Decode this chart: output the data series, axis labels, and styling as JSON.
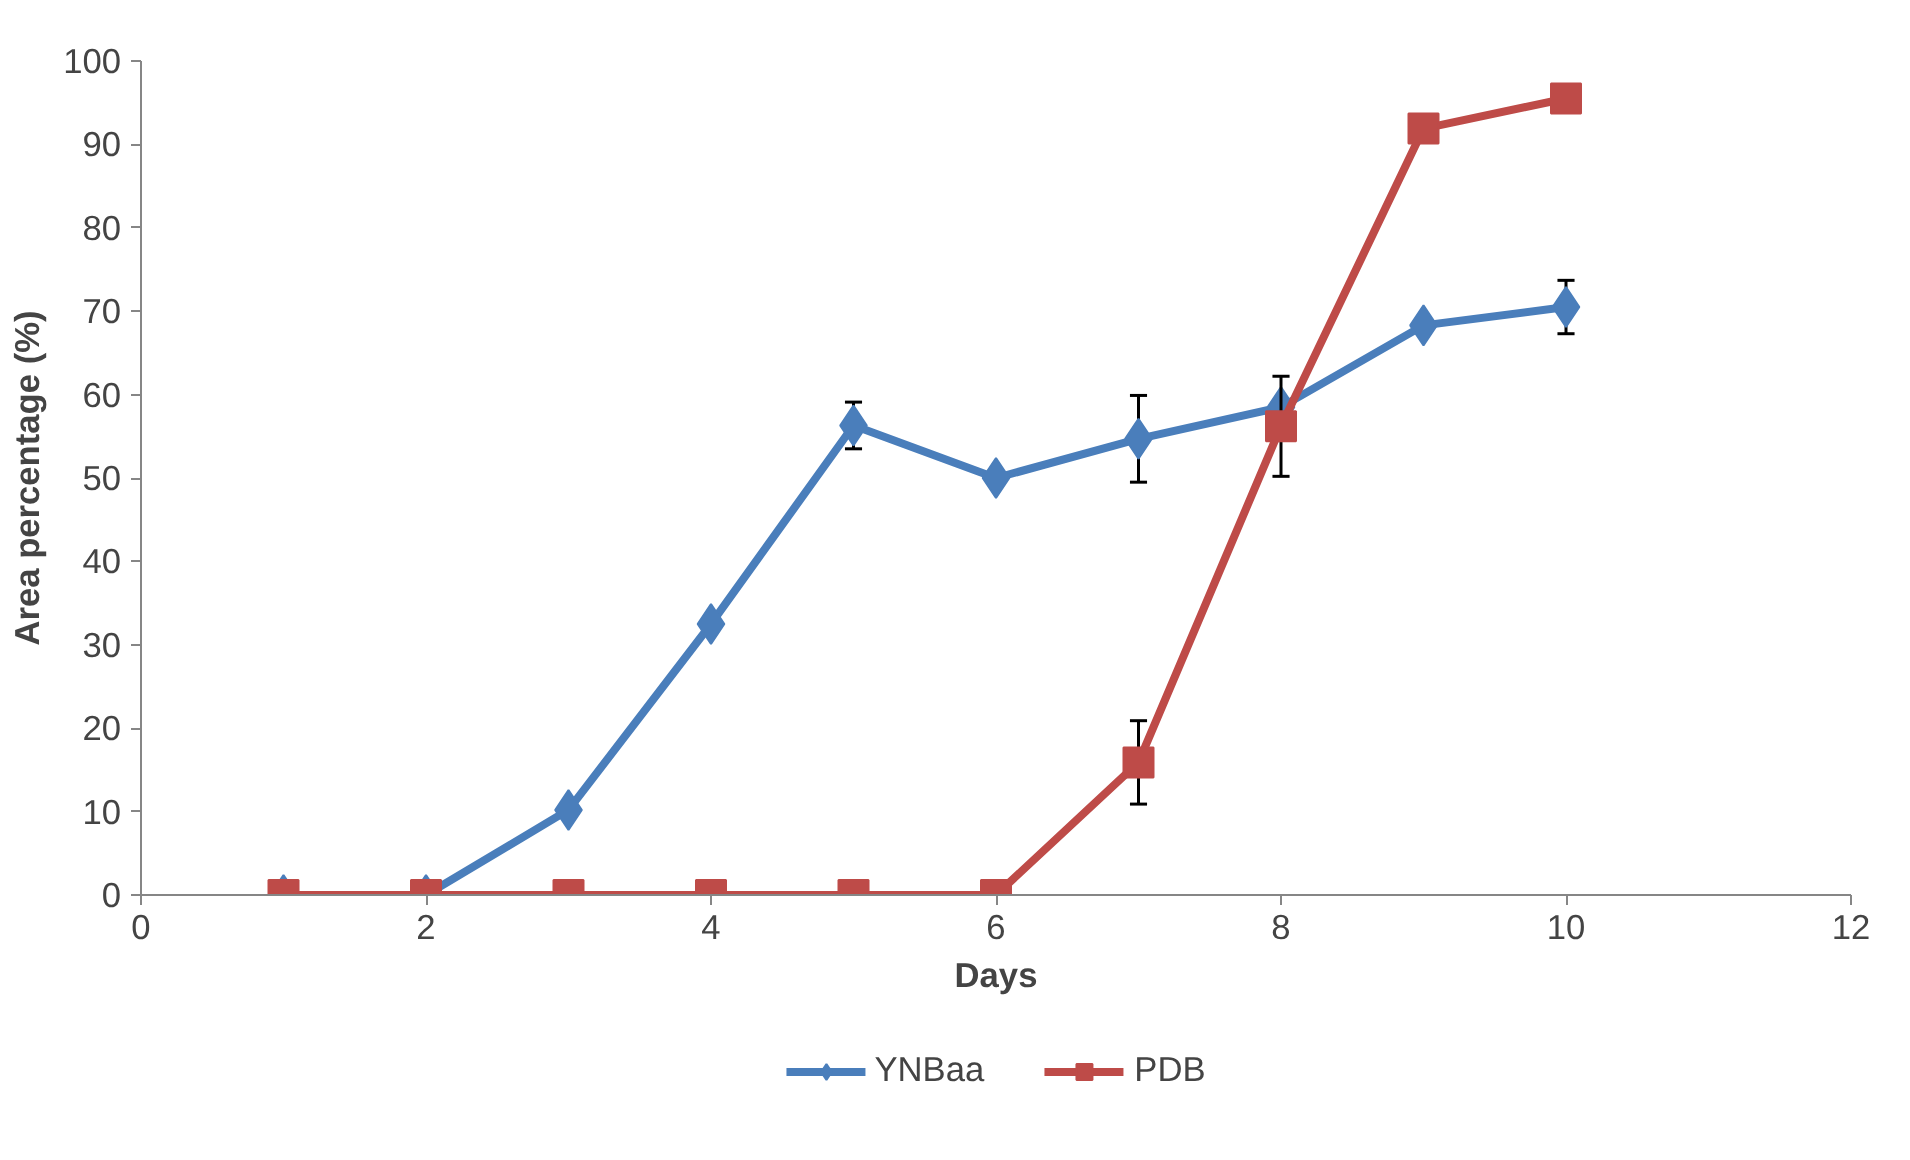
{
  "chart_data": {
    "type": "line",
    "xlabel": "Days",
    "ylabel": "Area percentage (%)",
    "x": [
      1,
      2,
      3,
      4,
      5,
      6,
      7,
      8,
      9,
      10
    ],
    "series": [
      {
        "name": "YNBaa",
        "color": "#4a7ebb",
        "marker": "diamond",
        "values": [
          0,
          0,
          10.2,
          32.5,
          56.3,
          50,
          54.7,
          58.5,
          68.3,
          70.5
        ],
        "errors": [
          null,
          null,
          null,
          null,
          2.8,
          null,
          5.2,
          null,
          null,
          3.2
        ]
      },
      {
        "name": "PDB",
        "color": "#be4b48",
        "marker": "square",
        "values": [
          0,
          0,
          0,
          0,
          0,
          0,
          15.9,
          56.2,
          91.9,
          95.5
        ],
        "errors": [
          null,
          null,
          null,
          null,
          null,
          null,
          5,
          6,
          null,
          null
        ]
      }
    ],
    "xlim": [
      0,
      12
    ],
    "xticks": [
      0,
      2,
      4,
      6,
      8,
      10,
      12
    ],
    "ylim": [
      0,
      100
    ],
    "yticks": [
      0,
      10,
      20,
      30,
      40,
      50,
      60,
      70,
      80,
      90,
      100
    ],
    "grid": false,
    "legend": "bottom",
    "line_style": "solid"
  }
}
